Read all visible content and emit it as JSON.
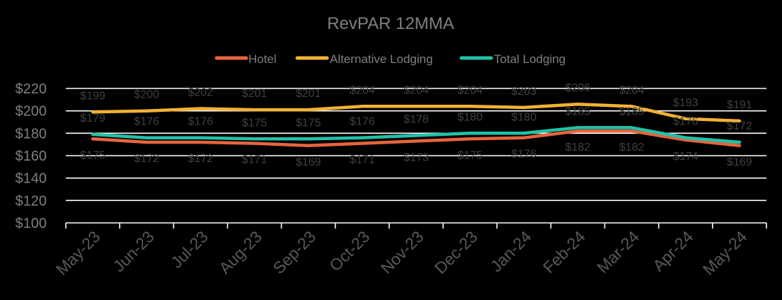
{
  "chart_data": {
    "type": "line",
    "title": "RevPAR 12MMA",
    "categories": [
      "May-23",
      "Jun-23",
      "Jul-23",
      "Aug-23",
      "Sep-23",
      "Oct-23",
      "Nov-23",
      "Dec-23",
      "Jan-24",
      "Feb-24",
      "Mar-24",
      "Apr-24",
      "May-24"
    ],
    "series": [
      {
        "name": "Hotel",
        "color": "#e8643c",
        "values": [
          175,
          172,
          172,
          171,
          169,
          171,
          173,
          175,
          176,
          182,
          182,
          174,
          169
        ]
      },
      {
        "name": "Alternative Lodging",
        "color": "#f2b233",
        "values": [
          199,
          200,
          202,
          201,
          201,
          204,
          204,
          204,
          203,
          206,
          204,
          193,
          191
        ]
      },
      {
        "name": "Total Lodging",
        "color": "#20c2a8",
        "values": [
          179,
          176,
          176,
          175,
          175,
          176,
          178,
          180,
          180,
          185,
          185,
          176,
          172
        ]
      }
    ],
    "y_ticks": [
      "$100",
      "$120",
      "$140",
      "$160",
      "$180",
      "$200",
      "$220"
    ],
    "value_prefix": "$",
    "ylim": [
      100,
      220
    ],
    "grid": true,
    "legend_position": "top"
  }
}
